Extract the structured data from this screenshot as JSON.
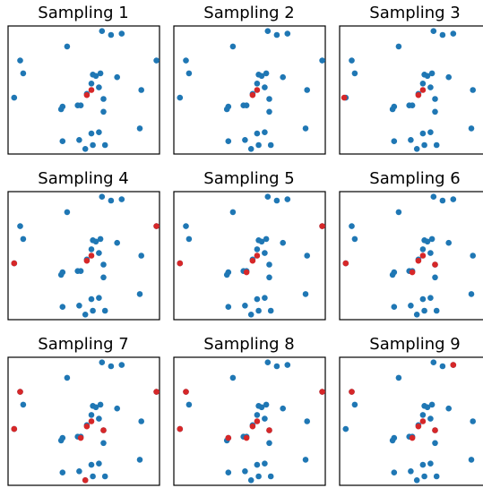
{
  "figure": {
    "layout": "3x3 grid of scatter subplots",
    "colors": {
      "base_points": "#1f77b4",
      "sampled_points": "#d62728",
      "frame": "#000000",
      "background": "#ffffff"
    }
  },
  "base_points": {
    "x": [
      0.04,
      0.08,
      0.1,
      0.39,
      0.62,
      0.68,
      0.75,
      0.56,
      0.58,
      0.61,
      0.72,
      0.98,
      0.88,
      0.55,
      0.6,
      0.52,
      0.46,
      0.36,
      0.48,
      0.35,
      0.63,
      0.63,
      0.87,
      0.55,
      0.6,
      0.47,
      0.36,
      0.56,
      0.64,
      0.51
    ],
    "y": [
      0.44,
      0.73,
      0.63,
      0.84,
      0.96,
      0.93,
      0.94,
      0.62,
      0.61,
      0.63,
      0.6,
      0.73,
      0.5,
      0.55,
      0.52,
      0.47,
      0.38,
      0.37,
      0.38,
      0.35,
      0.43,
      0.33,
      0.2,
      0.16,
      0.17,
      0.11,
      0.1,
      0.07,
      0.07,
      0.04
    ]
  },
  "chart_data": [
    {
      "type": "scatter",
      "title": "Sampling 1",
      "xlabel": "",
      "ylabel": "",
      "xlim": [
        0,
        1
      ],
      "ylim": [
        0,
        1
      ],
      "grid": false,
      "sampled": {
        "x": [
          0.52,
          0.55
        ],
        "y": [
          0.46,
          0.5
        ]
      }
    },
    {
      "type": "scatter",
      "title": "Sampling 2",
      "xlabel": "",
      "ylabel": "",
      "xlim": [
        0,
        1
      ],
      "ylim": [
        0,
        1
      ],
      "grid": false,
      "sampled": {
        "x": [
          0.52,
          0.55
        ],
        "y": [
          0.46,
          0.5
        ]
      }
    },
    {
      "type": "scatter",
      "title": "Sampling 3",
      "xlabel": "",
      "ylabel": "",
      "xlim": [
        0,
        1
      ],
      "ylim": [
        0,
        1
      ],
      "grid": false,
      "sampled": {
        "x": [
          0.03,
          0.52,
          0.55
        ],
        "y": [
          0.44,
          0.46,
          0.5
        ]
      }
    },
    {
      "type": "scatter",
      "title": "Sampling 4",
      "xlabel": "",
      "ylabel": "",
      "xlim": [
        0,
        1
      ],
      "ylim": [
        0,
        1
      ],
      "grid": false,
      "sampled": {
        "x": [
          0.04,
          0.52,
          0.55,
          0.98
        ],
        "y": [
          0.44,
          0.46,
          0.5,
          0.73
        ]
      }
    },
    {
      "type": "scatter",
      "title": "Sampling 5",
      "xlabel": "",
      "ylabel": "",
      "xlim": [
        0,
        1
      ],
      "ylim": [
        0,
        1
      ],
      "grid": false,
      "sampled": {
        "x": [
          0.04,
          0.52,
          0.55,
          0.98,
          0.48
        ],
        "y": [
          0.44,
          0.46,
          0.5,
          0.73,
          0.37
        ]
      }
    },
    {
      "type": "scatter",
      "title": "Sampling 6",
      "xlabel": "",
      "ylabel": "",
      "xlim": [
        0,
        1
      ],
      "ylim": [
        0,
        1
      ],
      "grid": false,
      "sampled": {
        "x": [
          0.04,
          0.52,
          0.55,
          0.98,
          0.48,
          0.63
        ],
        "y": [
          0.44,
          0.46,
          0.5,
          0.73,
          0.37,
          0.43
        ]
      }
    },
    {
      "type": "scatter",
      "title": "Sampling 7",
      "xlabel": "",
      "ylabel": "",
      "xlim": [
        0,
        1
      ],
      "ylim": [
        0,
        1
      ],
      "grid": false,
      "sampled": {
        "x": [
          0.04,
          0.52,
          0.55,
          0.98,
          0.48,
          0.63,
          0.51,
          0.08
        ],
        "y": [
          0.44,
          0.46,
          0.5,
          0.73,
          0.37,
          0.43,
          0.04,
          0.73
        ]
      }
    },
    {
      "type": "scatter",
      "title": "Sampling 8",
      "xlabel": "",
      "ylabel": "",
      "xlim": [
        0,
        1
      ],
      "ylim": [
        0,
        1
      ],
      "grid": false,
      "sampled": {
        "x": [
          0.04,
          0.52,
          0.55,
          0.98,
          0.48,
          0.63,
          0.08,
          0.36
        ],
        "y": [
          0.44,
          0.46,
          0.5,
          0.73,
          0.37,
          0.43,
          0.73,
          0.37
        ]
      }
    },
    {
      "type": "scatter",
      "title": "Sampling 9",
      "xlabel": "",
      "ylabel": "",
      "xlim": [
        0,
        1
      ],
      "ylim": [
        0,
        1
      ],
      "grid": false,
      "sampled": {
        "x": [
          0.52,
          0.55,
          0.98,
          0.48,
          0.63,
          0.08,
          0.75
        ],
        "y": [
          0.46,
          0.5,
          0.73,
          0.37,
          0.43,
          0.73,
          0.94
        ]
      }
    }
  ]
}
